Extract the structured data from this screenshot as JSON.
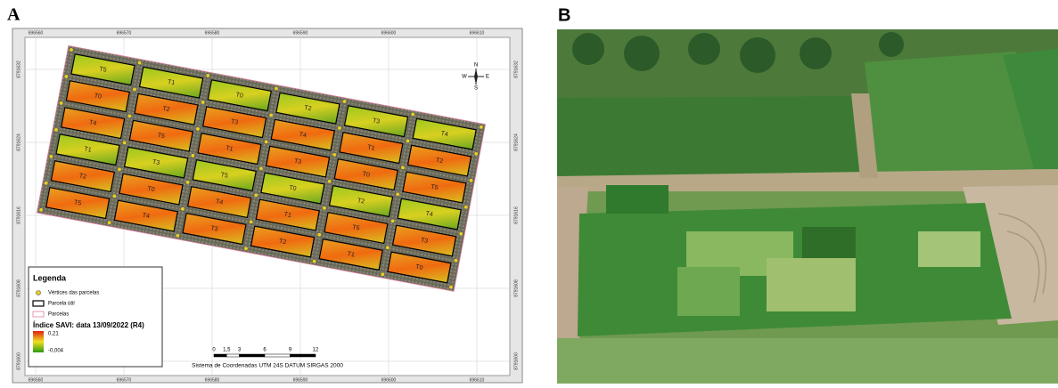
{
  "panel_a": {
    "label": "A",
    "x_ticks": [
      "696560",
      "696570",
      "696580",
      "696590",
      "696600",
      "696610"
    ],
    "y_ticks": [
      "8791632",
      "8791624",
      "8791616",
      "8791608",
      "8791600"
    ],
    "north": [
      "N",
      "S",
      "E",
      "W"
    ],
    "plots": [
      [
        "T5",
        "T1",
        "T0",
        "T2",
        "T3",
        "T4"
      ],
      [
        "T0",
        "T2",
        "T3",
        "T4",
        "T1",
        "T2"
      ],
      [
        "T4",
        "T5",
        "T1",
        "T3",
        "T0",
        "T5"
      ],
      [
        "T1",
        "T3",
        "T5",
        "T0",
        "T2",
        "T4"
      ],
      [
        "T2",
        "T0",
        "T4",
        "T1",
        "T5",
        "T3"
      ],
      [
        "T5",
        "T4",
        "T3",
        "T2",
        "T1",
        "T0"
      ]
    ],
    "legend": {
      "title": "Legenda",
      "items": [
        "Vértices das parcelas",
        "Parcela útil",
        "Parcelas"
      ],
      "savi_title": "Índice SAVI: data 13/09/2022 (R4)",
      "savi_max": "0,21",
      "savi_min": "-0,004"
    },
    "scale_ticks": [
      "0",
      "1,5",
      "3",
      "6",
      "9",
      "12"
    ],
    "coordinate_system": "Sistema de Coordenadas UTM 24S DATUM SIRGAS 2000"
  },
  "panel_b": {
    "label": "B"
  }
}
